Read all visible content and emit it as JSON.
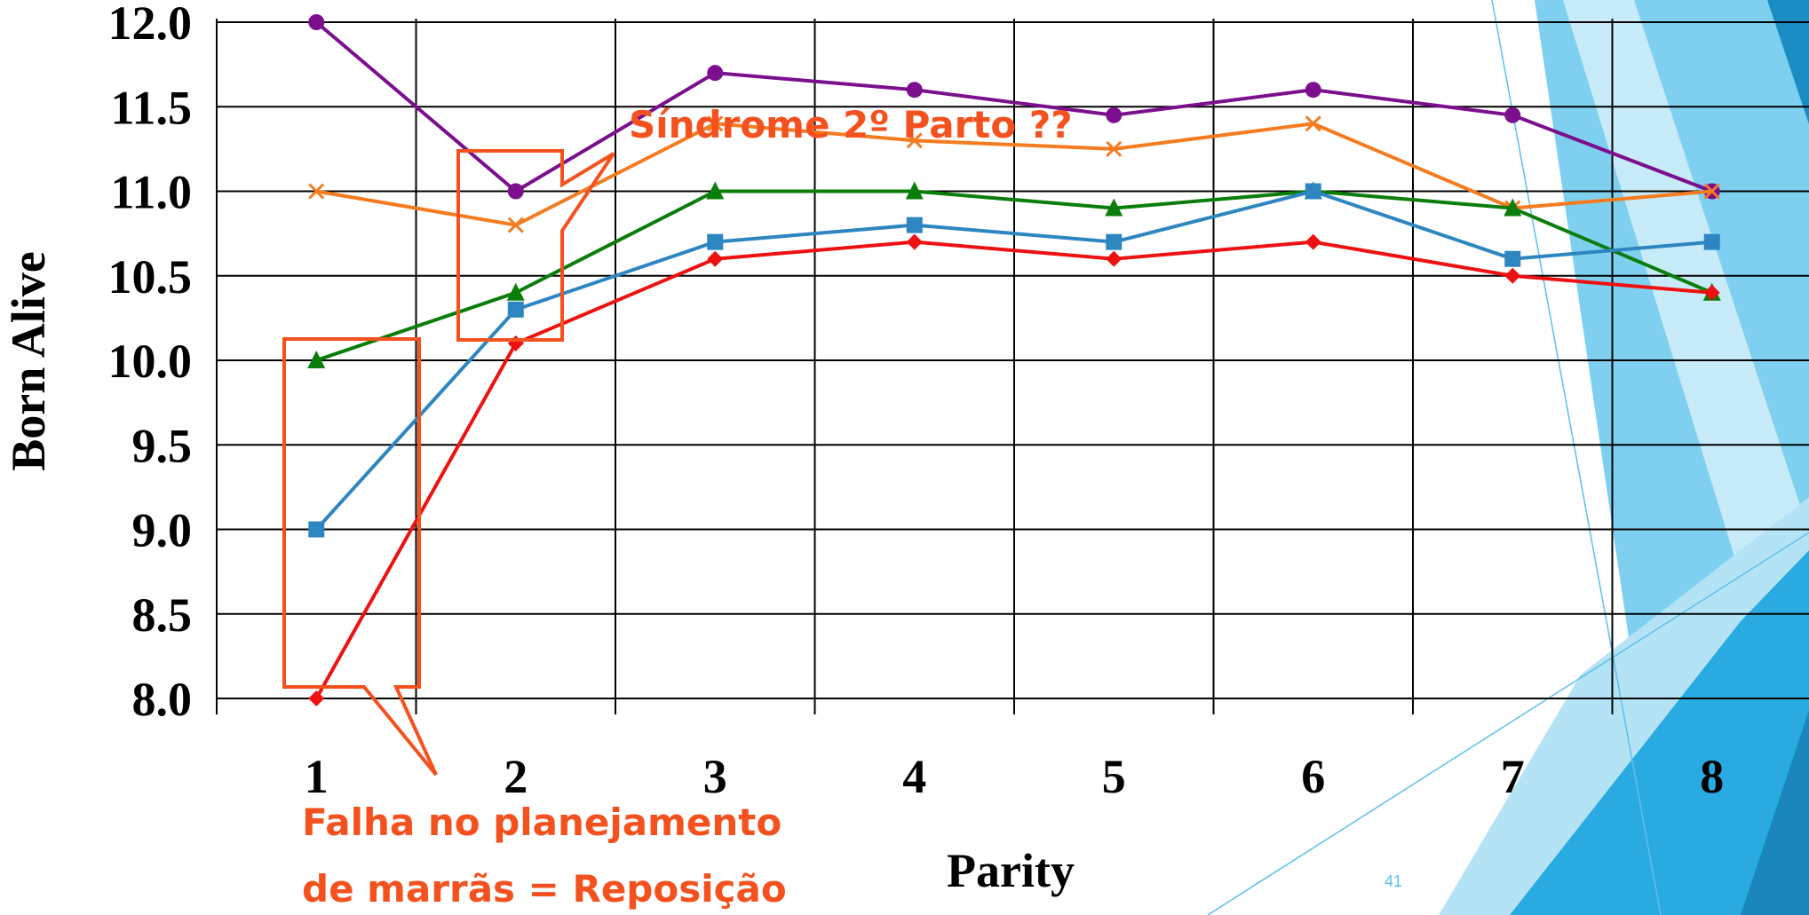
{
  "chart_data": {
    "type": "line",
    "y_label": "Born Alive",
    "x_label": "Parity",
    "categories": [
      "1",
      "2",
      "3",
      "4",
      "5",
      "6",
      "7",
      "8"
    ],
    "series": [
      {
        "color": "#7b0f8e",
        "marker": "circle",
        "values": [
          12.0,
          11.0,
          11.7,
          11.6,
          11.45,
          11.6,
          11.45,
          11.0
        ]
      },
      {
        "color": "#f47b20",
        "marker": "x",
        "values": [
          11.0,
          10.8,
          11.4,
          11.3,
          11.25,
          11.4,
          10.9,
          11.0
        ]
      },
      {
        "color": "#0a7d0a",
        "marker": "triangle",
        "values": [
          10.0,
          10.4,
          11.0,
          11.0,
          10.9,
          11.0,
          10.9,
          10.4
        ]
      },
      {
        "color": "#2e86c1",
        "marker": "square",
        "values": [
          9.0,
          10.3,
          10.7,
          10.8,
          10.7,
          11.0,
          10.6,
          10.7
        ]
      },
      {
        "color": "#ee1111",
        "marker": "diamond",
        "values": [
          8.0,
          10.1,
          10.6,
          10.7,
          10.6,
          10.7,
          10.5,
          10.4
        ]
      }
    ],
    "ylim": [
      8.0,
      12.0
    ],
    "yticks": [
      {
        "value": 8,
        "label": "8.0"
      },
      8.5,
      {
        "value": 9,
        "label": "9.0"
      },
      9.5,
      {
        "value": 10,
        "label": "10.0"
      },
      10.5,
      {
        "value": 11,
        "label": "11.0"
      },
      11.5,
      {
        "value": 12,
        "label": "12.0"
      }
    ],
    "grid": true,
    "annotations": [
      "Síndrome 2º Parto ??",
      "Falha no planejamento",
      "de marrãs = Reposição"
    ]
  },
  "slide": {
    "page_number": "41"
  }
}
